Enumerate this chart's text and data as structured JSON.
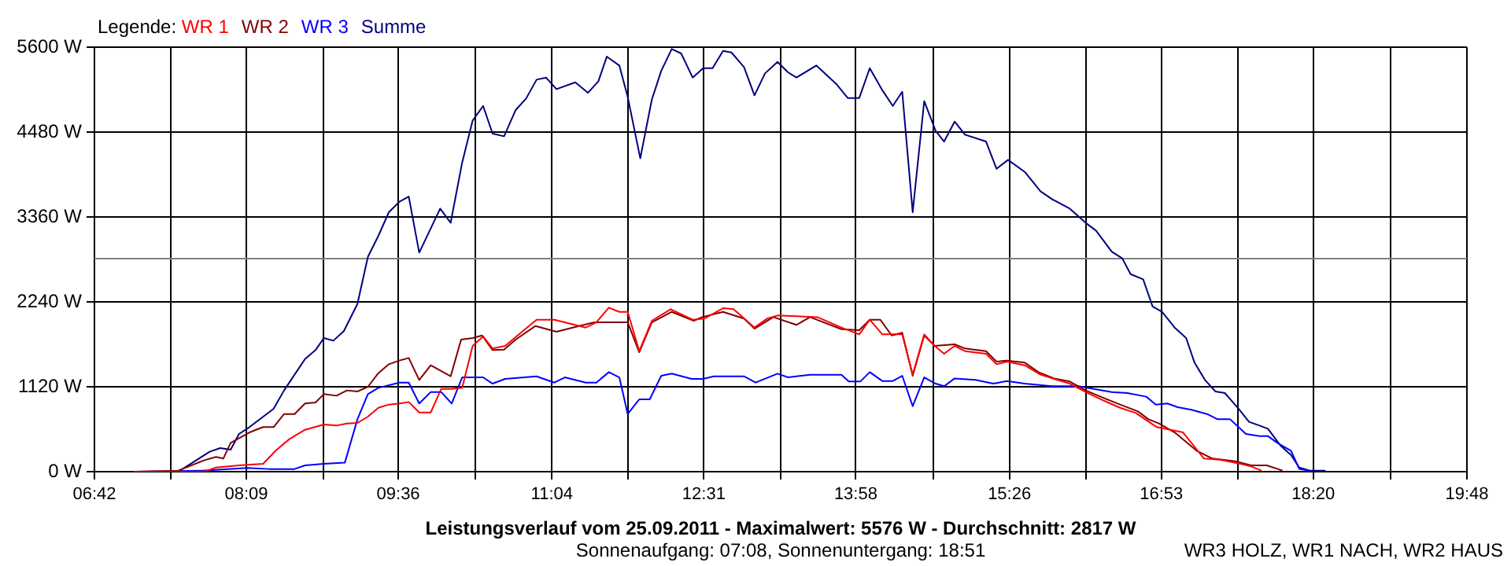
{
  "chart_data": {
    "type": "line",
    "title": "Leistungsverlauf vom 25.09.2011 - Maximalwert: 5576 W - Durchschnitt: 2817 W",
    "subtitle": "Sonnenaufgang: 07:08, Sonnenuntergang: 18:51",
    "legend_title": "Legende:",
    "annotations": [
      "WR3 HOLZ, WR1 NACH, WR2 HAUS"
    ],
    "legend": "top left",
    "grid": true,
    "marker": "none",
    "line_style": "solid",
    "xlim": [
      6.7,
      19.8
    ],
    "xticks": [
      {
        "value": 6.7,
        "label": "06:42"
      },
      {
        "value": 7.4278,
        "label": null
      },
      {
        "value": 8.15,
        "label": "08:09"
      },
      {
        "value": 8.8833,
        "label": null
      },
      {
        "value": 9.6,
        "label": "09:36"
      },
      {
        "value": 10.3389,
        "label": null
      },
      {
        "value": 11.0667,
        "label": "11:04"
      },
      {
        "value": 11.7944,
        "label": null
      },
      {
        "value": 12.5167,
        "label": "12:31"
      },
      {
        "value": 13.25,
        "label": null
      },
      {
        "value": 13.9667,
        "label": "13:58"
      },
      {
        "value": 14.7056,
        "label": null
      },
      {
        "value": 15.4333,
        "label": "15:26"
      },
      {
        "value": 16.1611,
        "label": null
      },
      {
        "value": 16.8833,
        "label": "16:53"
      },
      {
        "value": 17.6167,
        "label": null
      },
      {
        "value": 18.3333,
        "label": "18:20"
      },
      {
        "value": 19.0722,
        "label": null
      },
      {
        "value": 19.8,
        "label": "19:48"
      }
    ],
    "ylim": [
      0,
      5600
    ],
    "yticks": [
      {
        "value": 0,
        "label": "0 W"
      },
      {
        "value": 1120,
        "label": "1120 W"
      },
      {
        "value": 2240,
        "label": "2240 W"
      },
      {
        "value": 3360,
        "label": "3360 W"
      },
      {
        "value": 4480,
        "label": "4480 W"
      },
      {
        "value": 5600,
        "label": "5600 W"
      }
    ],
    "ref_lines": [
      {
        "axis": "y",
        "value": 2817,
        "color": "#808080"
      }
    ],
    "series": [
      {
        "name": "WR 1",
        "color": "#ff0000",
        "x": [
          7.08,
          7.75,
          7.86,
          8.08,
          8.31,
          8.43,
          8.56,
          8.71,
          8.89,
          9.01,
          9.11,
          9.21,
          9.31,
          9.41,
          9.51,
          9.61,
          9.7,
          9.8,
          9.91,
          10.01,
          10.11,
          10.21,
          10.31,
          10.41,
          10.5,
          10.62,
          10.77,
          10.92,
          11.09,
          11.39,
          11.49,
          11.61,
          11.71,
          11.79,
          11.9,
          12.02,
          12.2,
          12.41,
          12.52,
          12.7,
          12.8,
          13.0,
          13.12,
          13.22,
          13.6,
          13.83,
          14.0,
          14.1,
          14.22,
          14.31,
          14.41,
          14.51,
          14.62,
          14.72,
          14.81,
          14.91,
          15.01,
          15.21,
          15.31,
          15.41,
          15.58,
          15.73,
          15.89,
          16.01,
          16.16,
          16.34,
          16.49,
          16.64,
          16.84,
          17.09,
          17.19,
          17.29,
          17.44,
          17.64,
          17.74,
          17.84
        ],
        "values": [
          0,
          0,
          55,
          83,
          104,
          277,
          429,
          553,
          622,
          608,
          636,
          643,
          726,
          843,
          885,
          899,
          919,
          781,
          781,
          1092,
          1092,
          1106,
          1659,
          1784,
          1625,
          1659,
          1832,
          2005,
          2005,
          1901,
          1970,
          2164,
          2108,
          2108,
          1590,
          1991,
          2143,
          2005,
          2019,
          2157,
          2143,
          1901,
          2019,
          2060,
          2039,
          1901,
          1811,
          2005,
          1811,
          1811,
          1811,
          1279,
          1811,
          1659,
          1555,
          1659,
          1590,
          1555,
          1417,
          1452,
          1403,
          1279,
          1210,
          1161,
          1051,
          933,
          843,
          774,
          588,
          518,
          346,
          173,
          159,
          104,
          69,
          14
        ]
      },
      {
        "name": "WR 2",
        "color": "#800000",
        "x": [
          7.08,
          7.5,
          7.75,
          7.86,
          7.93,
          8.0,
          8.18,
          8.31,
          8.41,
          8.51,
          8.61,
          8.71,
          8.81,
          8.89,
          9.01,
          9.11,
          9.21,
          9.31,
          9.41,
          9.51,
          9.61,
          9.7,
          9.8,
          9.91,
          10.1,
          10.2,
          10.31,
          10.4,
          10.5,
          10.61,
          10.72,
          10.91,
          11.11,
          11.31,
          11.47,
          11.79,
          11.9,
          12.02,
          12.21,
          12.42,
          12.5,
          12.7,
          12.9,
          13.0,
          13.18,
          13.4,
          13.53,
          13.83,
          14.0,
          14.1,
          14.2,
          14.31,
          14.41,
          14.51,
          14.62,
          14.72,
          14.91,
          15.01,
          15.21,
          15.31,
          15.41,
          15.58,
          15.71,
          15.86,
          16.01,
          16.16,
          16.34,
          16.49,
          16.66,
          16.76,
          16.86,
          17.01,
          17.22,
          17.37,
          17.59,
          17.74,
          17.89,
          18.04
        ],
        "values": [
          0,
          14,
          152,
          194,
          173,
          380,
          518,
          588,
          588,
          760,
          760,
          899,
          913,
          1023,
          1002,
          1072,
          1058,
          1120,
          1300,
          1417,
          1466,
          1500,
          1210,
          1403,
          1258,
          1742,
          1763,
          1797,
          1604,
          1611,
          1742,
          1922,
          1846,
          1915,
          1970,
          1970,
          1576,
          1970,
          2108,
          1991,
          2039,
          2108,
          2019,
          1887,
          2039,
          1936,
          2039,
          1880,
          1867,
          2005,
          2005,
          1797,
          1832,
          1265,
          1797,
          1659,
          1680,
          1625,
          1590,
          1452,
          1466,
          1438,
          1313,
          1230,
          1189,
          1072,
          968,
          885,
          795,
          691,
          636,
          518,
          277,
          173,
          138,
          83,
          83,
          14
        ]
      },
      {
        "name": "WR 3",
        "color": "#0000ff",
        "x": [
          7.08,
          7.73,
          8.16,
          8.36,
          8.61,
          8.71,
          8.89,
          9.09,
          9.21,
          9.31,
          9.41,
          9.61,
          9.7,
          9.8,
          9.91,
          10.01,
          10.11,
          10.21,
          10.41,
          10.5,
          10.62,
          10.92,
          11.09,
          11.19,
          11.39,
          11.49,
          11.61,
          11.71,
          11.79,
          11.9,
          12.0,
          12.11,
          12.21,
          12.4,
          12.51,
          12.61,
          12.9,
          13.01,
          13.22,
          13.32,
          13.53,
          13.83,
          13.9,
          14.01,
          14.1,
          14.22,
          14.32,
          14.41,
          14.51,
          14.62,
          14.73,
          14.81,
          14.91,
          15.11,
          15.28,
          15.41,
          15.58,
          15.84,
          16.09,
          16.24,
          16.41,
          16.56,
          16.74,
          16.83,
          16.94,
          17.04,
          17.17,
          17.32,
          17.42,
          17.54,
          17.69,
          17.82,
          17.9,
          17.99,
          18.12,
          18.2,
          18.3
        ],
        "values": [
          0,
          14,
          48,
          35,
          35,
          83,
          104,
          118,
          691,
          1023,
          1106,
          1175,
          1175,
          899,
          1051,
          1051,
          899,
          1244,
          1244,
          1161,
          1224,
          1258,
          1175,
          1244,
          1175,
          1175,
          1313,
          1244,
          760,
          954,
          954,
          1265,
          1293,
          1224,
          1224,
          1258,
          1258,
          1175,
          1293,
          1244,
          1279,
          1279,
          1189,
          1189,
          1313,
          1196,
          1196,
          1265,
          864,
          1244,
          1161,
          1127,
          1230,
          1210,
          1161,
          1196,
          1161,
          1127,
          1127,
          1092,
          1051,
          1037,
          989,
          885,
          899,
          850,
          816,
          760,
          691,
          691,
          498,
          470,
          470,
          380,
          277,
          35,
          14
        ]
      },
      {
        "name": "Summe",
        "color": "#000080",
        "x": [
          7.08,
          7.5,
          7.8,
          7.9,
          8.0,
          8.08,
          8.18,
          8.41,
          8.51,
          8.61,
          8.71,
          8.81,
          8.89,
          8.98,
          9.08,
          9.21,
          9.31,
          9.41,
          9.51,
          9.61,
          9.7,
          9.8,
          10.0,
          10.1,
          10.21,
          10.31,
          10.41,
          10.5,
          10.61,
          10.72,
          10.82,
          10.92,
          11.01,
          11.11,
          11.29,
          11.41,
          11.51,
          11.59,
          11.71,
          11.79,
          11.91,
          12.02,
          12.11,
          12.21,
          12.3,
          12.41,
          12.51,
          12.6,
          12.7,
          12.78,
          12.9,
          13.0,
          13.1,
          13.22,
          13.32,
          13.4,
          13.59,
          13.78,
          13.89,
          14.0,
          14.1,
          14.22,
          14.32,
          14.41,
          14.51,
          14.62,
          14.73,
          14.81,
          14.91,
          15.01,
          15.21,
          15.31,
          15.42,
          15.58,
          15.73,
          15.84,
          16.01,
          16.16,
          16.26,
          16.41,
          16.51,
          16.59,
          16.71,
          16.8,
          16.89,
          17.01,
          17.12,
          17.2,
          17.3,
          17.4,
          17.49,
          17.62,
          17.72,
          17.82,
          17.9,
          18.02,
          18.12,
          18.2,
          18.3,
          18.45
        ],
        "values": [
          0,
          0,
          263,
          311,
          290,
          498,
          588,
          830,
          1072,
          1279,
          1486,
          1604,
          1763,
          1728,
          1853,
          2212,
          2834,
          3111,
          3422,
          3560,
          3629,
          2890,
          3470,
          3284,
          4079,
          4632,
          4825,
          4459,
          4424,
          4770,
          4922,
          5171,
          5199,
          5046,
          5136,
          4998,
          5150,
          5475,
          5358,
          4943,
          4134,
          4908,
          5288,
          5576,
          5517,
          5199,
          5323,
          5323,
          5551,
          5530,
          5337,
          4964,
          5254,
          5406,
          5268,
          5199,
          5358,
          5116,
          4929,
          4929,
          5323,
          5033,
          4825,
          5012,
          3422,
          4888,
          4493,
          4355,
          4618,
          4445,
          4355,
          3996,
          4113,
          3954,
          3698,
          3595,
          3470,
          3284,
          3180,
          2903,
          2814,
          2606,
          2537,
          2178,
          2108,
          1901,
          1763,
          1438,
          1210,
          1058,
          1037,
          830,
          657,
          608,
          567,
          346,
          221,
          55,
          14,
          14
        ]
      }
    ]
  }
}
